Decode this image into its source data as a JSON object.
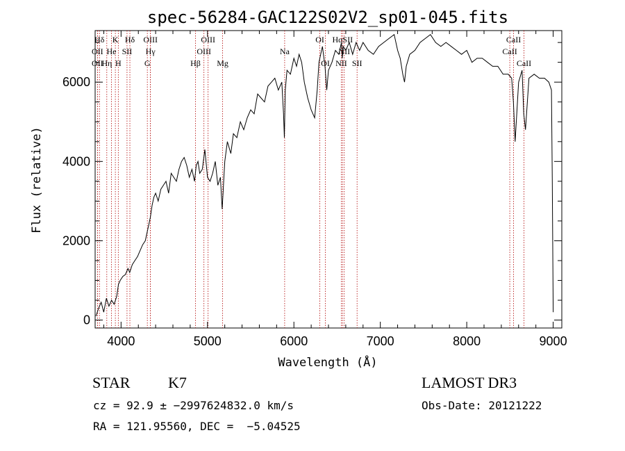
{
  "chart_data": {
    "type": "line",
    "title": "spec-56284-GAC122S02V2_sp01-045.fits",
    "xlabel": "Wavelength (Å)",
    "ylabel": "Flux (relative)",
    "xlim": [
      3700,
      9100
    ],
    "ylim": [
      -200,
      7300
    ],
    "x_ticks": [
      4000,
      5000,
      6000,
      7000,
      8000,
      9000
    ],
    "y_ticks": [
      0,
      2000,
      4000,
      6000
    ],
    "grid": false,
    "series": [
      {
        "color": "#000000",
        "x": [
          3710,
          3740,
          3770,
          3800,
          3830,
          3860,
          3890,
          3920,
          3950,
          3970,
          3990,
          4020,
          4050,
          4080,
          4100,
          4130,
          4160,
          4190,
          4220,
          4250,
          4280,
          4300,
          4320,
          4340,
          4360,
          4380,
          4400,
          4430,
          4460,
          4490,
          4520,
          4550,
          4580,
          4610,
          4640,
          4670,
          4700,
          4730,
          4760,
          4790,
          4820,
          4850,
          4870,
          4890,
          4910,
          4940,
          4970,
          5000,
          5030,
          5060,
          5090,
          5120,
          5150,
          5170,
          5180,
          5190,
          5200,
          5230,
          5270,
          5300,
          5340,
          5380,
          5420,
          5460,
          5500,
          5540,
          5580,
          5620,
          5660,
          5700,
          5740,
          5780,
          5820,
          5860,
          5880,
          5890,
          5900,
          5920,
          5960,
          6000,
          6030,
          6060,
          6090,
          6120,
          6160,
          6200,
          6240,
          6270,
          6290,
          6310,
          6330,
          6360,
          6380,
          6400,
          6440,
          6480,
          6520,
          6550,
          6560,
          6570,
          6600,
          6640,
          6680,
          6720,
          6760,
          6800,
          6860,
          6920,
          6980,
          7040,
          7100,
          7160,
          7200,
          7230,
          7260,
          7280,
          7300,
          7340,
          7400,
          7460,
          7520,
          7580,
          7640,
          7700,
          7760,
          7820,
          7880,
          7940,
          8000,
          8060,
          8120,
          8180,
          8240,
          8300,
          8360,
          8420,
          8480,
          8520,
          8540,
          8560,
          8600,
          8640,
          8660,
          8680,
          8720,
          8780,
          8840,
          8900,
          8950,
          8980,
          8990,
          9000
        ],
        "y": [
          100,
          300,
          450,
          200,
          550,
          350,
          500,
          400,
          600,
          900,
          1000,
          1100,
          1150,
          1300,
          1200,
          1400,
          1500,
          1600,
          1750,
          1900,
          2000,
          2200,
          2400,
          2600,
          2900,
          3100,
          3200,
          3000,
          3300,
          3400,
          3500,
          3200,
          3700,
          3600,
          3500,
          3800,
          4000,
          4100,
          3900,
          3600,
          3800,
          3500,
          3900,
          4000,
          3700,
          3800,
          4300,
          3600,
          3500,
          3700,
          4000,
          3400,
          3600,
          2800,
          3200,
          3600,
          4000,
          4500,
          4200,
          4700,
          4600,
          5000,
          4800,
          5100,
          5300,
          5200,
          5700,
          5600,
          5500,
          5900,
          6000,
          6100,
          5800,
          6000,
          5200,
          4600,
          5800,
          6300,
          6200,
          6600,
          6400,
          6700,
          6500,
          6000,
          5600,
          5300,
          5100,
          5800,
          6500,
          6700,
          6900,
          6400,
          5800,
          6300,
          6500,
          6800,
          6700,
          7000,
          6600,
          6900,
          6800,
          7000,
          6700,
          7000,
          6800,
          7000,
          6800,
          6700,
          6900,
          7000,
          7100,
          7200,
          6800,
          6600,
          6200,
          6000,
          6400,
          6700,
          6800,
          7000,
          7100,
          7200,
          7000,
          6900,
          7000,
          6900,
          6800,
          6700,
          6800,
          6500,
          6600,
          6600,
          6500,
          6400,
          6400,
          6200,
          6200,
          6100,
          5500,
          4500,
          6000,
          6300,
          5200,
          4800,
          6100,
          6200,
          6100,
          6100,
          6000,
          5800,
          3500,
          200
        ]
      }
    ]
  },
  "lines": [
    {
      "label": "Hδ",
      "x": 3750,
      "row": 0
    },
    {
      "label": "K",
      "x": 3934,
      "row": 0
    },
    {
      "label": "Hδ",
      "x": 4102,
      "row": 0
    },
    {
      "label": "OIII",
      "x": 4340,
      "row": 0
    },
    {
      "label": "OIII",
      "x": 5007,
      "row": 0
    },
    {
      "label": "OI",
      "x": 6300,
      "row": 0
    },
    {
      "label": "HαSII",
      "x": 6563,
      "row": 0
    },
    {
      "label": "CaII",
      "x": 8542,
      "row": 0
    },
    {
      "label": "OII",
      "x": 3727,
      "row": 1
    },
    {
      "label": "He",
      "x": 3889,
      "row": 1
    },
    {
      "label": "SII",
      "x": 4069,
      "row": 1
    },
    {
      "label": "Hγ",
      "x": 4340,
      "row": 1
    },
    {
      "label": "OIII",
      "x": 4959,
      "row": 1
    },
    {
      "label": "Na",
      "x": 5893,
      "row": 1
    },
    {
      "label": "NII",
      "x": 6583,
      "row": 1
    },
    {
      "label": "CaII",
      "x": 8498,
      "row": 1
    },
    {
      "label": "OII",
      "x": 3727,
      "row": 2
    },
    {
      "label": "Hη",
      "x": 3835,
      "row": 2
    },
    {
      "label": "H",
      "x": 3968,
      "row": 2
    },
    {
      "label": "G",
      "x": 4304,
      "row": 2
    },
    {
      "label": "Hβ",
      "x": 4861,
      "row": 2
    },
    {
      "label": "Mg",
      "x": 5175,
      "row": 2
    },
    {
      "label": "OI",
      "x": 6364,
      "row": 2
    },
    {
      "label": "NII",
      "x": 6548,
      "row": 2
    },
    {
      "label": "SII",
      "x": 6731,
      "row": 2
    },
    {
      "label": "CaII",
      "x": 8662,
      "row": 2
    }
  ],
  "info": {
    "class_label": "STAR",
    "subclass": "K7",
    "survey": "LAMOST DR3",
    "cz": "cz = 92.9 ± −2997624832.0 km/s",
    "obs_date": "Obs-Date: 20121222",
    "radec": "RA = 121.95560, DEC =  −5.04525"
  }
}
